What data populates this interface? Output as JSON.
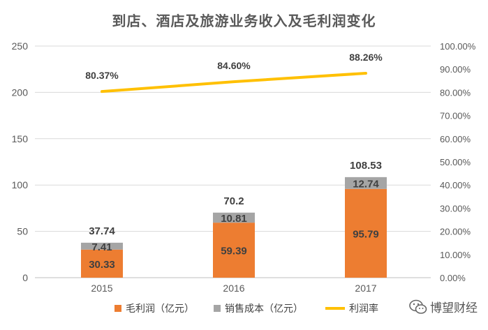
{
  "chart_data": {
    "type": "bar",
    "title": "到店、酒店及旅游业务收入及毛利润变化",
    "categories": [
      "2015",
      "2016",
      "2017"
    ],
    "series": [
      {
        "name": "毛利润（亿元）",
        "kind": "bar",
        "stack": "main",
        "color": "#ED7D31",
        "values": [
          30.33,
          59.39,
          95.79
        ]
      },
      {
        "name": "销售成本（亿元）",
        "kind": "bar",
        "stack": "main",
        "color": "#A5A5A5",
        "values": [
          7.41,
          10.81,
          12.74
        ]
      },
      {
        "name": "利润率",
        "kind": "line",
        "axis": "right",
        "color": "#FFC000",
        "values": [
          80.37,
          84.6,
          88.26
        ]
      }
    ],
    "totals": [
      "37.74",
      "70.2",
      "108.53"
    ],
    "bar_labels_primary": [
      "30.33",
      "59.39",
      "95.79"
    ],
    "bar_labels_secondary": [
      "7.41",
      "10.81",
      "12.74"
    ],
    "line_labels": [
      "80.37%",
      "84.60%",
      "88.26%"
    ],
    "y_left": {
      "min": 0,
      "max": 250,
      "ticks": [
        "0",
        "50",
        "100",
        "150",
        "200",
        "250"
      ]
    },
    "y_right": {
      "min": 0,
      "max": 100,
      "ticks": [
        "0.00%",
        "10.00%",
        "20.00%",
        "30.00%",
        "40.00%",
        "50.00%",
        "60.00%",
        "70.00%",
        "80.00%",
        "90.00%",
        "100.00%"
      ]
    },
    "grid": true,
    "legend_position": "bottom"
  },
  "legend": {
    "items": [
      {
        "label": "毛利润（亿元）",
        "color": "#ED7D31"
      },
      {
        "label": "销售成本（亿元）",
        "color": "#A5A5A5"
      },
      {
        "label": "利润率",
        "color": "#FFC000"
      }
    ]
  },
  "watermark": {
    "text": "博望财经",
    "icon": "wechat-icon"
  }
}
